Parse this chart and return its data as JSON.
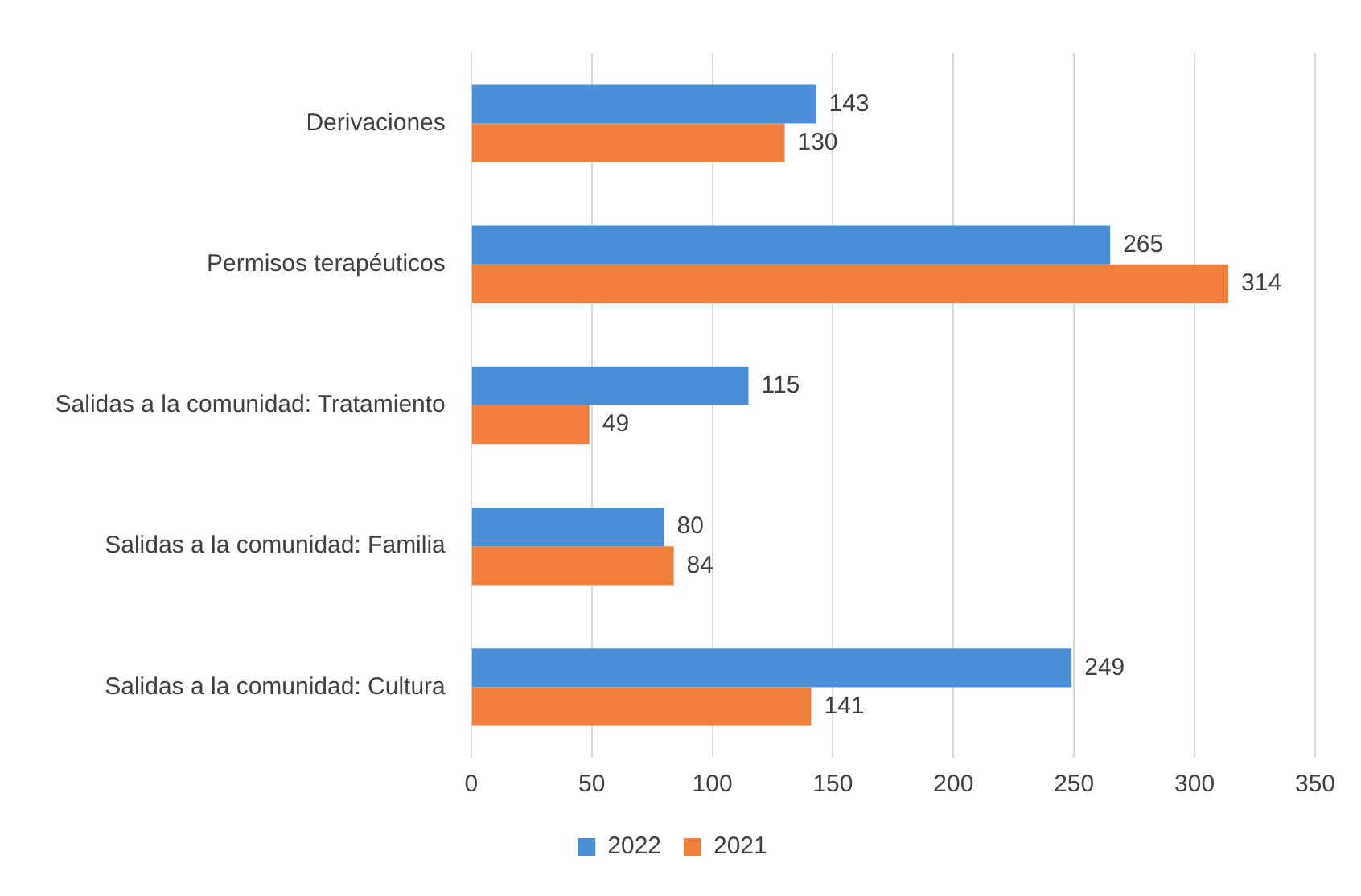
{
  "chart_data": {
    "type": "bar",
    "orientation": "horizontal",
    "categories": [
      "Derivaciones",
      "Permisos terapéuticos",
      "Salidas a la comunidad: Tratamiento",
      "Salidas a la comunidad: Familia",
      "Salidas a la comunidad: Cultura"
    ],
    "series": [
      {
        "name": "2022",
        "color": "#4a90d9",
        "values": [
          143,
          265,
          115,
          80,
          249
        ]
      },
      {
        "name": "2021",
        "color": "#ef7f3b",
        "values": [
          130,
          314,
          49,
          84,
          141
        ]
      }
    ],
    "xlim": [
      0,
      350
    ],
    "xticks": [
      0,
      50,
      100,
      150,
      200,
      250,
      300,
      350
    ],
    "grid": "x",
    "legend": "bottom",
    "data_labels": true
  }
}
